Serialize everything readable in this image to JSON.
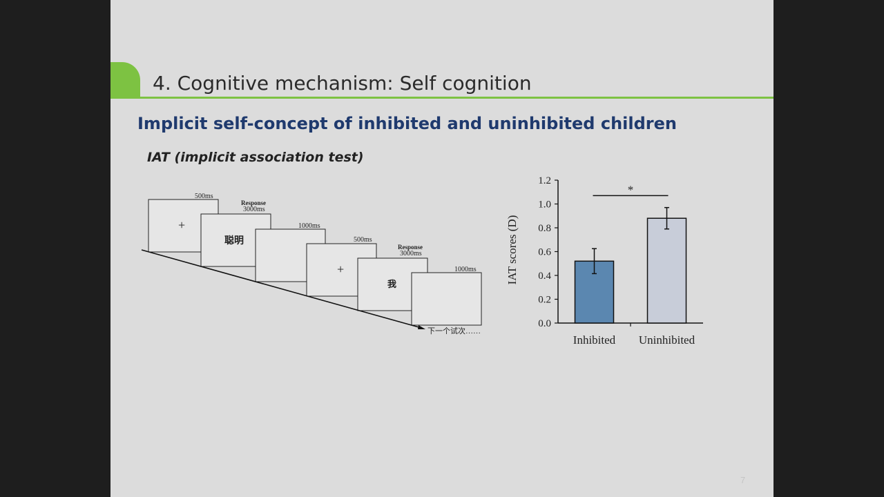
{
  "slide": {
    "title": "4. Cognitive mechanism: Self cognition",
    "subtitle": "Implicit self-concept of inhibited and uninhibited children",
    "method_label": "IAT (implicit association test)",
    "page_number": "7",
    "accent_color": "#7dc242",
    "subtitle_color": "#1f3a6e"
  },
  "procedure": {
    "frames": [
      {
        "time": "500ms",
        "content": "+"
      },
      {
        "response": "Response",
        "time": "3000ms",
        "content": "聪明"
      },
      {
        "time": "1000ms",
        "content": ""
      },
      {
        "time": "500ms",
        "content": "+"
      },
      {
        "response": "Response",
        "time": "3000ms",
        "content": "我"
      },
      {
        "time": "1000ms",
        "content": ""
      }
    ],
    "next_label": "下一个试次……"
  },
  "chart_data": {
    "type": "bar",
    "categories": [
      "Inhibited",
      "Uninhibited"
    ],
    "values": [
      0.52,
      0.88
    ],
    "errors": [
      0.105,
      0.09
    ],
    "colors": [
      "#5b87b0",
      "#c8cdd9"
    ],
    "ylabel": "IAT scores (D)",
    "ylim": [
      0,
      1.2
    ],
    "yticks": [
      "0.0",
      "0.2",
      "0.4",
      "0.6",
      "0.8",
      "1.0",
      "1.2"
    ],
    "significance": "*"
  }
}
